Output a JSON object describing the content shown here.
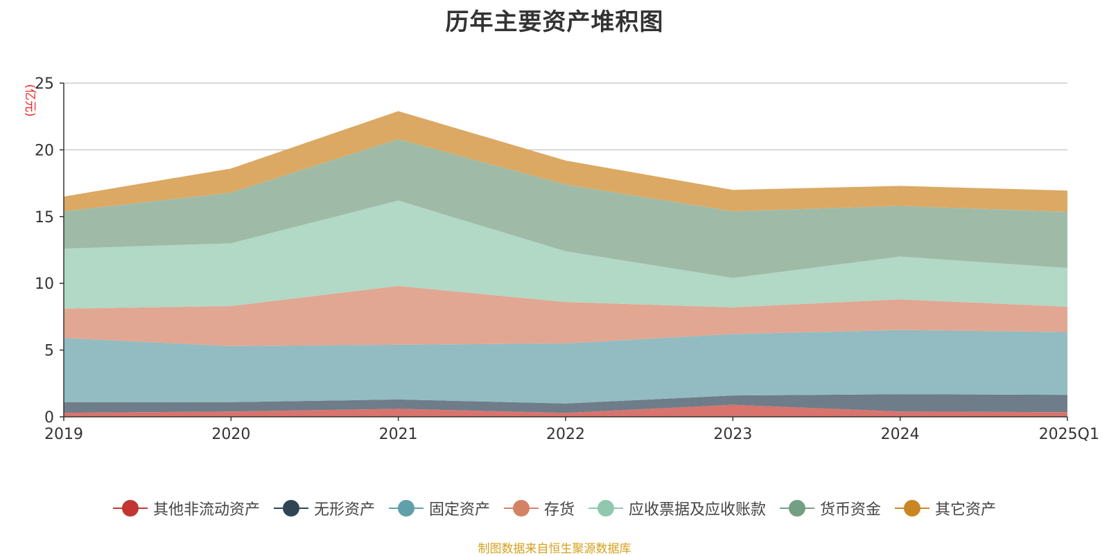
{
  "title": "历年主要资产堆积图",
  "source_note": "制图数据来自恒生聚源数据库",
  "chart_data": {
    "type": "area",
    "stacked": true,
    "x": [
      "2019",
      "2020",
      "2021",
      "2022",
      "2023",
      "2024",
      "2025Q1"
    ],
    "y_unit": "(亿元)",
    "ylim": [
      0,
      25
    ],
    "yticks": [
      0,
      5,
      10,
      15,
      20,
      25
    ],
    "grid": true,
    "legend_position": "bottom",
    "series": [
      {
        "name": "其他非流动资产",
        "color": "#c23531",
        "fill": "#d9736d",
        "values": [
          0.3,
          0.4,
          0.6,
          0.3,
          0.9,
          0.4,
          0.35
        ]
      },
      {
        "name": "无形资产",
        "color": "#2f4554",
        "fill": "#6e7d89",
        "values": [
          0.8,
          0.7,
          0.7,
          0.7,
          0.7,
          1.3,
          1.3
        ]
      },
      {
        "name": "固定资产",
        "color": "#61a0a8",
        "fill": "#92bcc2",
        "values": [
          4.8,
          4.2,
          4.1,
          4.5,
          4.6,
          4.8,
          4.7
        ]
      },
      {
        "name": "存货",
        "color": "#d48265",
        "fill": "#e1a792",
        "values": [
          2.2,
          3.0,
          4.4,
          3.1,
          2.0,
          2.3,
          1.9
        ]
      },
      {
        "name": "应收票据及应收账款",
        "color": "#91c7ae",
        "fill": "#b2d8c6",
        "values": [
          4.5,
          4.7,
          6.4,
          3.8,
          2.2,
          3.2,
          2.9
        ]
      },
      {
        "name": "货币资金",
        "color": "#749f83",
        "fill": "#9fbba8",
        "values": [
          2.8,
          3.8,
          4.6,
          5.0,
          5.0,
          3.8,
          4.2
        ]
      },
      {
        "name": "其它资产",
        "color": "#ca8622",
        "fill": "#dba963",
        "values": [
          1.1,
          1.8,
          2.1,
          1.8,
          1.6,
          1.5,
          1.6
        ]
      }
    ]
  }
}
